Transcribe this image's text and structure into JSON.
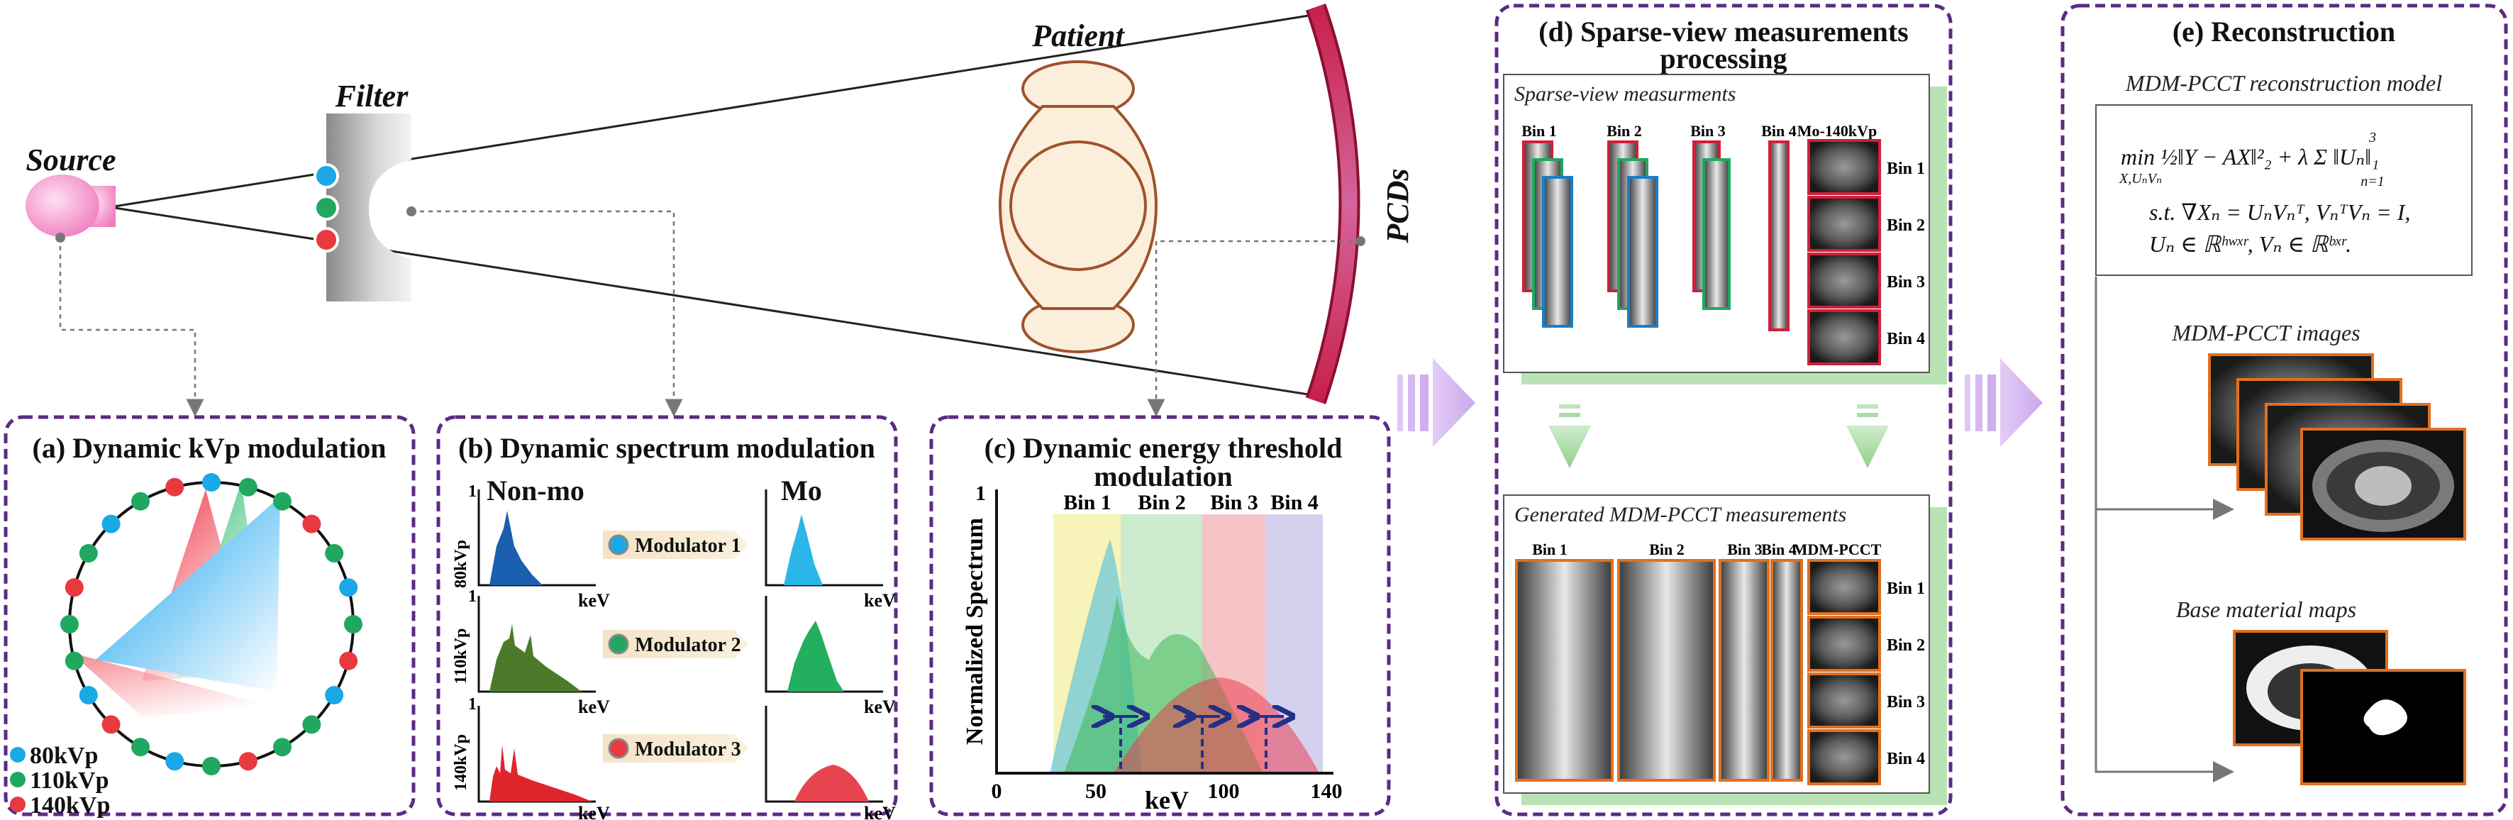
{
  "top": {
    "source": "Source",
    "filter": "Filter",
    "patient": "Patient",
    "pcds": "PCDs"
  },
  "panel_a": {
    "title": "(a) Dynamic kVp modulation",
    "legend": [
      "80kVp",
      "110kVp",
      "140kVp"
    ],
    "colors": {
      "kvp80": "#1aa8e6",
      "kvp110": "#20a860",
      "kvp140": "#e8393f"
    }
  },
  "panel_b": {
    "title": "(b) Dynamic spectrum modulation",
    "left_heading": "Non-mo",
    "right_heading": "Mo",
    "rows": [
      {
        "ylabel": "80kVp",
        "modulator": "Modulator 1"
      },
      {
        "ylabel": "110kVp",
        "modulator": "Modulator 2"
      },
      {
        "ylabel": "140kVp",
        "modulator": "Modulator 3"
      }
    ],
    "y_tick": "1",
    "x_label": "keV"
  },
  "panel_c": {
    "title_line1": "(c) Dynamic energy threshold",
    "title_line2": "modulation",
    "bins": [
      "Bin 1",
      "Bin 2",
      "Bin 3",
      "Bin 4"
    ],
    "ylabel": "Normalized Spectrum",
    "xlabel": "keV",
    "y_tick": "1",
    "x_ticks": [
      "0",
      "50",
      "100",
      "140"
    ]
  },
  "panel_d": {
    "title_line1": "(d) Sparse-view measurements",
    "title_line2": "processing",
    "sub1": "Sparse-view measurments",
    "sub1_cols": [
      "Bin 1",
      "Bin 2",
      "Bin 3",
      "Bin 4",
      "Mo-140kVp"
    ],
    "sub2": "Generated MDM-PCCT measurements",
    "sub2_cols": [
      "Bin 1",
      "Bin 2",
      "Bin 3",
      "Bin 4",
      "MDM-PCCT"
    ],
    "row_labels": [
      "Bin 1",
      "Bin 2",
      "Bin 3",
      "Bin 4"
    ]
  },
  "panel_e": {
    "title": "(e) Reconstruction",
    "model_title": "MDM-PCCT reconstruction model",
    "eq_line1": "min ½‖Y − AX‖²₂ + λ Σ ‖Uₙ‖₁",
    "eq_min_sub": "X,UₙVₙ",
    "eq_sum_top": "3",
    "eq_sum_bottom": "n=1",
    "eq_line2": "s.t. ∇Xₙ = UₙVₙᵀ, VₙᵀVₙ = I,",
    "eq_line3": "Uₙ ∈ ℝʰʷˣʳ, Vₙ ∈ ℝᵇˣʳ.",
    "images_label": "MDM-PCCT images",
    "maps_label": "Base material maps"
  }
}
